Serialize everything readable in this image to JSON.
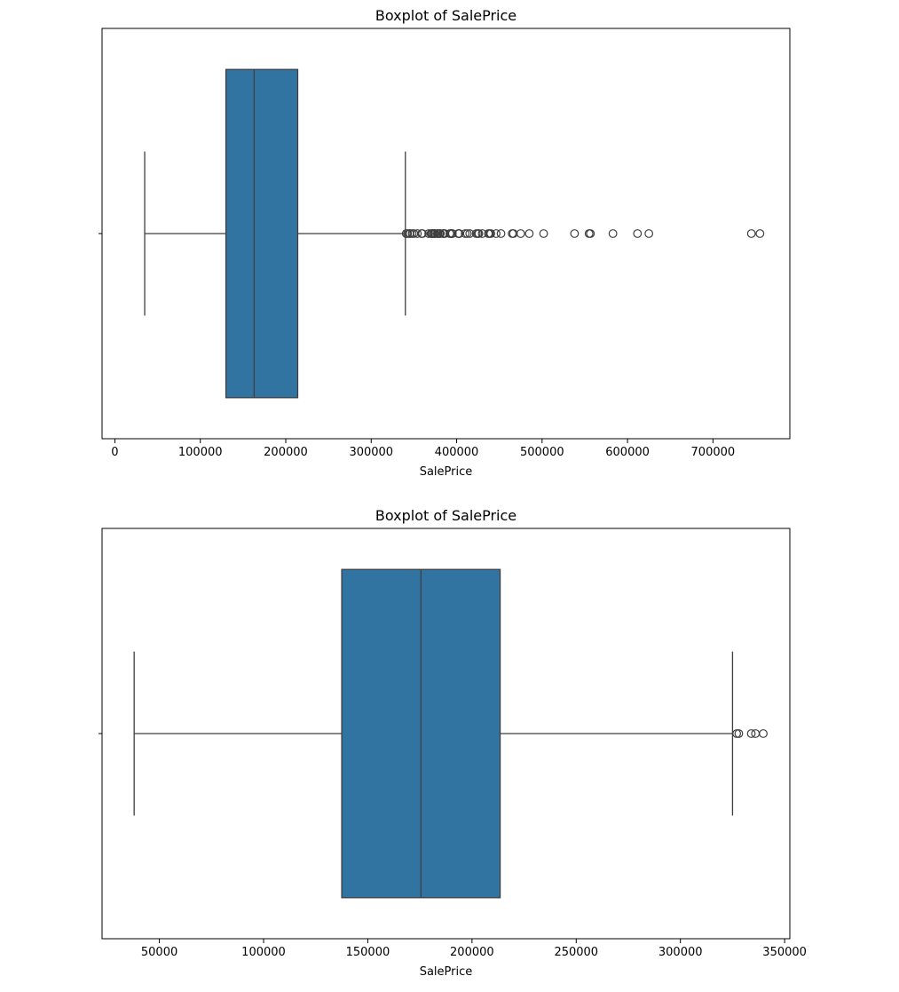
{
  "colors": {
    "box_fill": "#3274a1",
    "line": "#3f3f3f",
    "axis": "#000000",
    "background": "#ffffff"
  },
  "chart_data": [
    {
      "type": "boxplot",
      "title": "Boxplot of SalePrice",
      "xlabel": "SalePrice",
      "ylabel": "",
      "xlim": [
        -15000,
        790000
      ],
      "xticks": [
        0,
        100000,
        200000,
        300000,
        400000,
        500000,
        600000,
        700000
      ],
      "xtick_labels": [
        "0",
        "100000",
        "200000",
        "300000",
        "400000",
        "500000",
        "600000",
        "700000"
      ],
      "grid": false,
      "stats": {
        "whisker_low": 34900,
        "q1": 129975,
        "median": 163000,
        "q3": 214000,
        "whisker_high": 340000
      },
      "outliers": [
        341000,
        342643,
        345000,
        345474,
        348000,
        350000,
        354000,
        359100,
        360000,
        367294,
        369900,
        370878,
        372402,
        372500,
        374000,
        375000,
        377426,
        378500,
        380000,
        381000,
        383970,
        385000,
        386250,
        392000,
        392500,
        394432,
        395000,
        402000,
        402861,
        403000,
        410000,
        412500,
        415298,
        423000,
        424870,
        426000,
        430000,
        437154,
        438780,
        440000,
        446261,
        451950,
        465000,
        466500,
        475000,
        485000,
        501837,
        538000,
        555000,
        556581,
        582933,
        611657,
        625000,
        745000,
        755000
      ]
    },
    {
      "type": "boxplot",
      "title": "Boxplot of SalePrice",
      "xlabel": "SalePrice",
      "ylabel": "",
      "xlim": [
        22500,
        352500
      ],
      "xticks": [
        50000,
        100000,
        150000,
        200000,
        250000,
        300000,
        350000
      ],
      "xtick_labels": [
        "50000",
        "100000",
        "150000",
        "200000",
        "250000",
        "300000",
        "350000"
      ],
      "grid": false,
      "stats": {
        "whisker_low": 37900,
        "q1": 137500,
        "median": 175500,
        "q3": 213500,
        "whisker_high": 325000
      },
      "outliers": [
        327000,
        328000,
        334000,
        336000,
        339750
      ]
    }
  ]
}
